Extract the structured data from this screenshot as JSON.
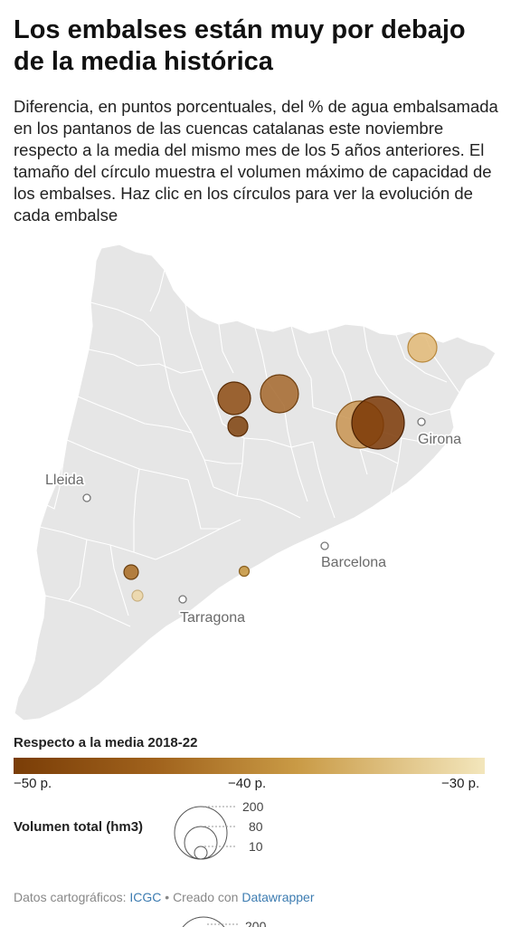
{
  "header": {
    "title": "Los embalses están muy por debajo de la media histórica",
    "subtitle": "Diferencia, en puntos porcentuales, del % de agua embalsamada en los pantanos de las cuencas catalanas este noviembre respecto a la media del mismo mes de los 5 años anteriores. El tamaño del círculo muestra el volumen máximo de capacidad de los embalses. Haz clic en los círculos para ver la evolución de cada embalse"
  },
  "map": {
    "cities": [
      {
        "name": "Lleida"
      },
      {
        "name": "Girona"
      },
      {
        "name": "Barcelona"
      },
      {
        "name": "Tarragona"
      }
    ],
    "reservoirs": [
      {
        "color": "#e2b875"
      },
      {
        "color": "#8c4a10"
      },
      {
        "color": "#a3662a"
      },
      {
        "color": "#7d3f0a"
      },
      {
        "color": "#c89350"
      },
      {
        "color": "#7a3705"
      },
      {
        "color": "#a86a20"
      },
      {
        "color": "#c4933a"
      },
      {
        "color": "#ecd6a6"
      }
    ]
  },
  "legend": {
    "color_title": "Respecto a la media 2018-22",
    "ticks": [
      "−50 p.",
      "−40 p.",
      "−30 p."
    ],
    "size_title": "Volumen total (hm3)",
    "size_values": [
      "200",
      "80",
      "10"
    ],
    "gradient_colors": [
      "#7a3d07",
      "#a0621c",
      "#c99a45",
      "#f3e6bc"
    ]
  },
  "footer": {
    "prefix": "Datos cartográficos:",
    "icgc": "ICGC",
    "separator": "• Creado con",
    "datawrapper": "Datawrapper",
    "cut_text": "200"
  }
}
